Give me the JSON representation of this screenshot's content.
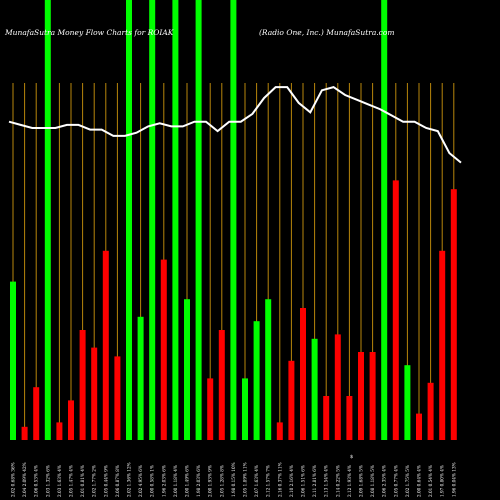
{
  "chart_data": {
    "type": "bar",
    "title_left": "MunafaSutra  Money Flow  Charts for ROIAK",
    "title_right": "(Radio  One, Inc.) MunafaSutra.com",
    "bottom_note": "$",
    "colors": {
      "up": "#00ff00",
      "down": "#ff0000",
      "gridline": "#b8860b",
      "line": "#ffffff",
      "background": "#000000"
    },
    "x_labels": [
      "2.02 0.68% 36%",
      "2.04 2.09% 42%",
      "2.06 0.53% 4%",
      "2.03 1.32% 6%",
      "2.03 1.63% 4%",
      "2.05 1.47% 4%",
      "2.01 0.81% 4%",
      "2.02 1.77% 2%",
      "2.05 0.44% 9%",
      "2.06 0.87% 8%",
      "2.02 1.36% 12%",
      "2.02 4.95% 6%",
      "2.00 0.58% 1%",
      "1.96 2.03% 6%",
      "2.00 1.18% 4%",
      "2.00 1.49% 6%",
      "1.98 2.03% 6%",
      "2.00 1.93% 9%",
      "2.05 1.28% 8%",
      "1.98 0.15% 10%",
      "2.05 1.89% 11%",
      "2.07 1.63% 4%",
      "2.12 1.57% 7%",
      "2.16 0.37% 11%",
      "2.10 2.16% 4%",
      "2.06 1.51% 6%",
      "2.11 2.81% 6%",
      "2.13 1.54% 4%",
      "2.14 0.22% 5%",
      "2.12 1.93% 4%",
      "2.09 1.68% 5%",
      "2.08 1.18% 5%",
      "2.06 2.35% 4%",
      "2.05 0.77% 4%",
      "2.02 1.75% 5%",
      "2.00 0.64% 4%",
      "2.01 0.54% 4%",
      "1.97 0.80% 4%",
      "1.96 0.04% 13%"
    ],
    "series": [
      {
        "values": [
          36,
          3,
          12,
          100,
          4,
          9,
          25,
          21,
          43,
          19,
          100,
          28,
          100,
          41,
          100,
          32,
          100,
          14,
          25,
          100,
          14,
          27,
          32,
          4,
          18,
          30,
          23,
          10,
          24,
          10,
          20,
          20,
          100,
          59,
          17,
          6,
          13,
          43,
          57
        ],
        "directions": [
          "up",
          "down",
          "down",
          "up",
          "down",
          "down",
          "down",
          "down",
          "down",
          "down",
          "up",
          "up",
          "up",
          "down",
          "up",
          "up",
          "up",
          "down",
          "down",
          "up",
          "up",
          "up",
          "up",
          "down",
          "down",
          "down",
          "up",
          "down",
          "down",
          "down",
          "down",
          "down",
          "up",
          "down",
          "up",
          "down",
          "down",
          "down",
          "down"
        ]
      }
    ],
    "price_line": [
      3.38,
      3.36,
      3.34,
      3.34,
      3.34,
      3.36,
      3.36,
      3.33,
      3.33,
      3.29,
      3.29,
      3.31,
      3.35,
      3.37,
      3.35,
      3.35,
      3.38,
      3.38,
      3.32,
      3.38,
      3.38,
      3.43,
      3.53,
      3.6,
      3.6,
      3.5,
      3.44,
      3.58,
      3.6,
      3.55,
      3.52,
      3.49,
      3.46,
      3.42,
      3.38,
      3.38,
      3.34,
      3.32,
      3.18,
      3.12
    ],
    "price_range": [
      2.5,
      3.9
    ],
    "value_range": [
      0,
      100
    ],
    "grid": true
  }
}
